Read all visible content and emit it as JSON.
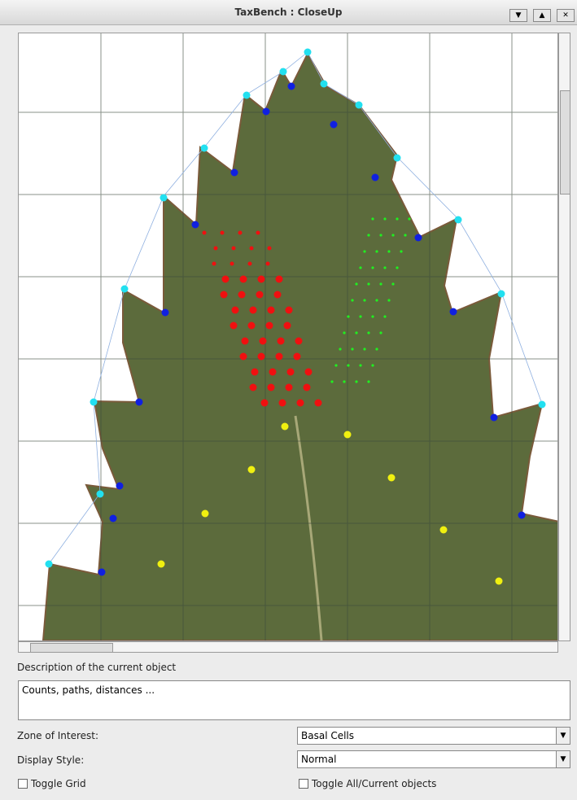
{
  "window": {
    "title": "TaxBench : CloseUp"
  },
  "description": {
    "label": "Description of the current object",
    "text": "Counts, paths, distances ..."
  },
  "zone": {
    "label": "Zone of Interest:",
    "value": "Basal Cells"
  },
  "style": {
    "label": "Display Style:",
    "value": "Normal"
  },
  "toggles": [
    "Toggle Grid",
    "Toggle All/Current objects"
  ]
}
